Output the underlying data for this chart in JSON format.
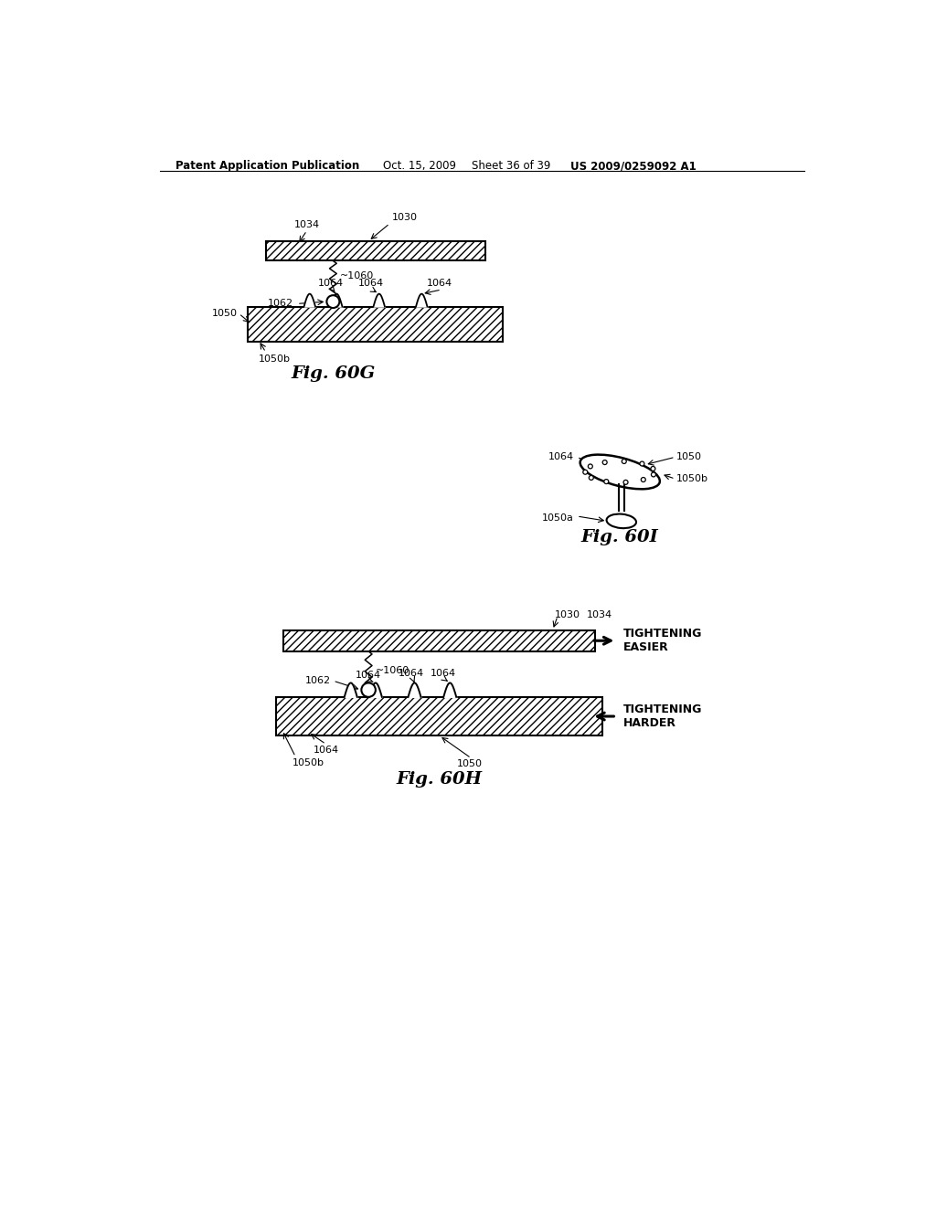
{
  "bg_color": "#ffffff",
  "header_text": "Patent Application Publication",
  "header_date": "Oct. 15, 2009",
  "header_sheet": "Sheet 36 of 39",
  "header_patent": "US 2009/0259092 A1",
  "fig60G_label": "Fig. 60G",
  "fig60I_label": "Fig. 60I",
  "fig60H_label": "Fig. 60H",
  "tightening_easier": "TIGHTENING\nEASIER",
  "tightening_harder": "TIGHTENING\nHARDER"
}
